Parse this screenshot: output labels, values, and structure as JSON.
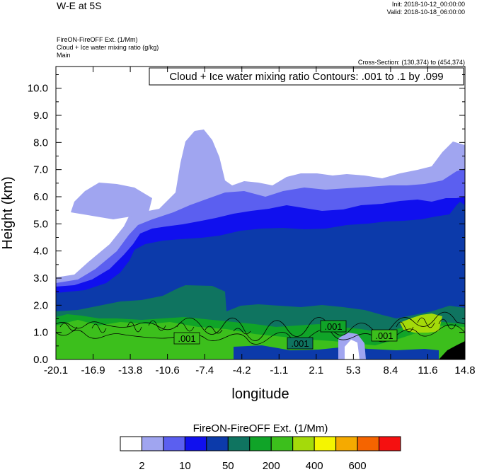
{
  "header": {
    "title": "W-E at 5S",
    "init": "Init: 2018-10-12_00:00:00",
    "valid": "Valid: 2018-10-18_06:00:00",
    "field1": "FireON-FireOFF Ext.   (1/Mm)",
    "field2": "Cloud + Ice water mixing ratio   (g/kg)",
    "field3": "Main",
    "cross_section": "Cross-Section: (130,374) to (454,374)"
  },
  "chart_data": {
    "type": "heatmap",
    "title": "Cloud + Ice water mixing ratio Contours: .001 to .1 by .099",
    "xlabel": "longitude",
    "ylabel": "Height (km)",
    "xlim": [
      -20.1,
      14.8
    ],
    "ylim": [
      0,
      10.8
    ],
    "x_ticks": [
      "-20.1",
      "-16.9",
      "-13.8",
      "-10.6",
      "-7.4",
      "-4.2",
      "-1.1",
      "2.1",
      "5.3",
      "8.4",
      "11.6",
      "14.8"
    ],
    "y_ticks": [
      "0.0",
      "1.0",
      "2.0",
      "3.0",
      "4.0",
      "5.0",
      "6.0",
      "7.0",
      "8.0",
      "9.0",
      "10.0"
    ],
    "contour_labels": [
      ".001",
      ".001",
      ".001",
      ".001"
    ],
    "colorbar": {
      "title": "FireON-FireOFF Ext.  (1/Mm)",
      "colors": [
        "#ffffff",
        "#a0a5f0",
        "#5b5ff0",
        "#1010ee",
        "#0c3aaa",
        "#0f7460",
        "#10a428",
        "#3cbf1c",
        "#a4da0a",
        "#f5f500",
        "#f5aa00",
        "#f56400",
        "#f51010"
      ],
      "tick_labels": [
        "2",
        "10",
        "50",
        "200",
        "400",
        "600"
      ]
    }
  }
}
